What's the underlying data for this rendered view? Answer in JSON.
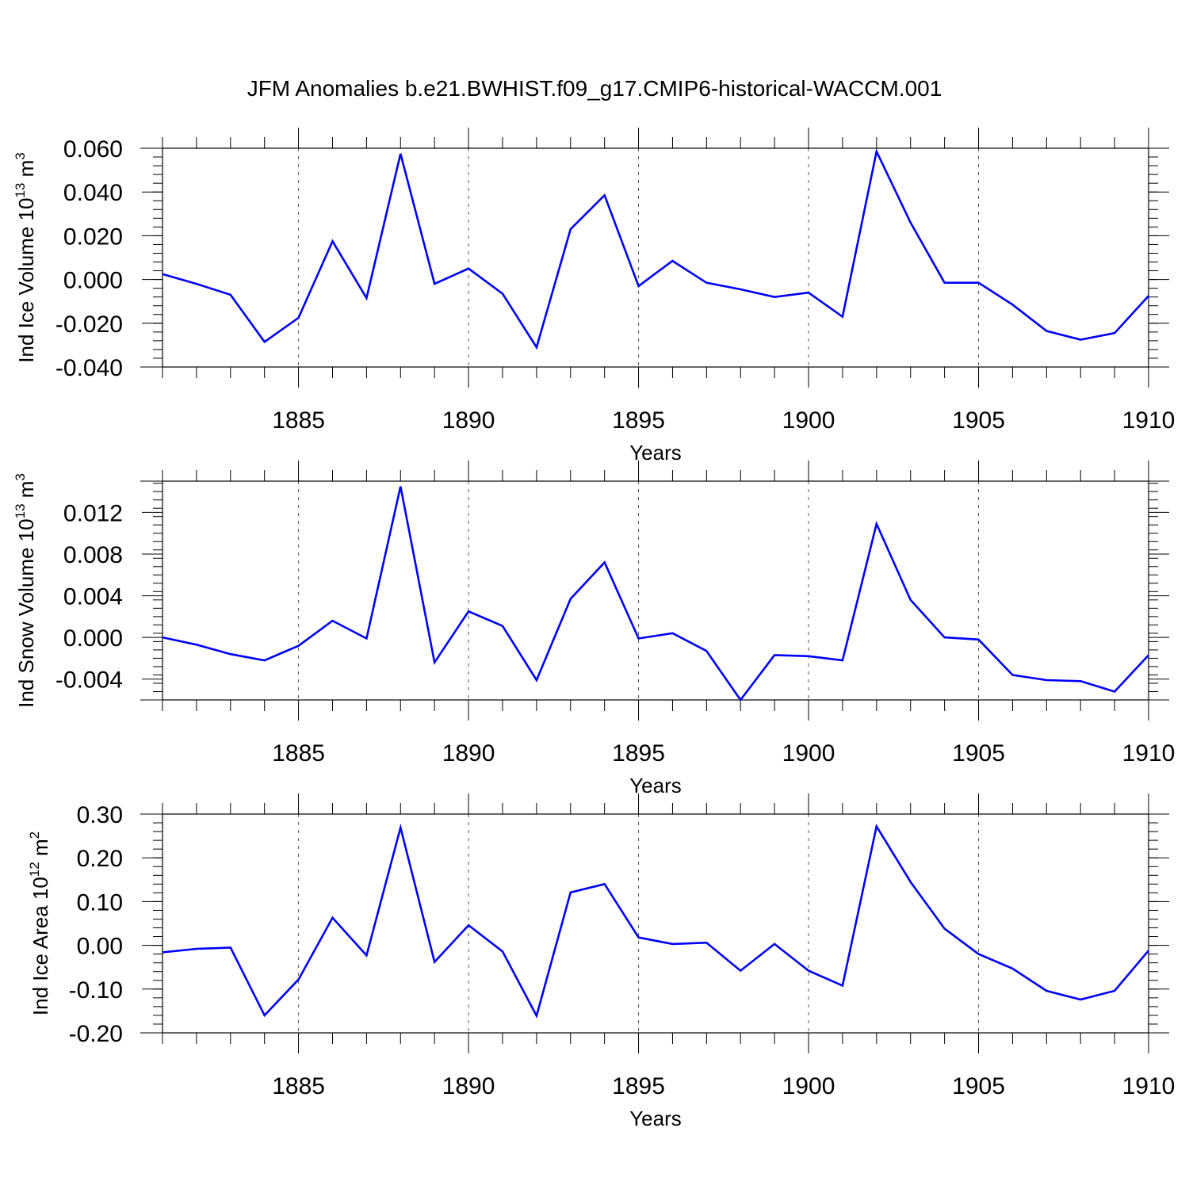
{
  "title": "JFM Anomalies b.e21.BWHIST.f09_g17.CMIP6-historical-WACCM.001",
  "line_color": "#0000ff",
  "chart_data": [
    {
      "type": "line",
      "xlabel": "Years",
      "ylabel": "Ind Ice Volume 10",
      "ylabel_exp": "13",
      "ylabel_unit": "m",
      "ylabel_unit_exp": "3",
      "xlim": [
        1881,
        1910
      ],
      "ylim": [
        -0.04,
        0.06
      ],
      "xticks": [
        "1885",
        "1890",
        "1895",
        "1900",
        "1905",
        "1910"
      ],
      "yticks": [
        "0.060",
        "0.040",
        "0.020",
        "0.000",
        "-0.020",
        "-0.040"
      ],
      "ytick_values": [
        0.06,
        0.04,
        0.02,
        0.0,
        -0.02,
        -0.04
      ],
      "ytick_minor_step": 0.004,
      "grid": "dashed vertical at 5-year ticks",
      "x": [
        1881,
        1882,
        1883,
        1884,
        1885,
        1886,
        1887,
        1888,
        1889,
        1890,
        1891,
        1892,
        1893,
        1894,
        1895,
        1896,
        1897,
        1898,
        1899,
        1900,
        1901,
        1902,
        1903,
        1904,
        1905,
        1906,
        1907,
        1908,
        1909,
        1910
      ],
      "values": [
        0.0025,
        -0.002,
        -0.007,
        -0.0285,
        -0.0175,
        0.0175,
        -0.0085,
        0.0575,
        -0.002,
        0.005,
        -0.0065,
        -0.031,
        0.023,
        0.0385,
        -0.003,
        0.0085,
        -0.0015,
        -0.0045,
        -0.008,
        -0.006,
        -0.017,
        0.0585,
        0.026,
        -0.0015,
        -0.0015,
        -0.0115,
        -0.0235,
        -0.0275,
        -0.0245,
        -0.0075
      ]
    },
    {
      "type": "line",
      "xlabel": "Years",
      "ylabel": "Ind Snow Volume 10",
      "ylabel_exp": "13",
      "ylabel_unit": "m",
      "ylabel_unit_exp": "3",
      "xlim": [
        1881,
        1910
      ],
      "ylim": [
        -0.006,
        0.015
      ],
      "xticks": [
        "1885",
        "1890",
        "1895",
        "1900",
        "1905",
        "1910"
      ],
      "yticks": [
        "0.012",
        "0.008",
        "0.004",
        "0.000",
        "-0.004"
      ],
      "ytick_values": [
        0.012,
        0.008,
        0.004,
        0.0,
        -0.004
      ],
      "ytick_minor_step": 0.0008,
      "grid": "dashed vertical at 5-year ticks",
      "x": [
        1881,
        1882,
        1883,
        1884,
        1885,
        1886,
        1887,
        1888,
        1889,
        1890,
        1891,
        1892,
        1893,
        1894,
        1895,
        1896,
        1897,
        1898,
        1899,
        1900,
        1901,
        1902,
        1903,
        1904,
        1905,
        1906,
        1907,
        1908,
        1909,
        1910
      ],
      "values": [
        0.0,
        -0.0007,
        -0.0016,
        -0.0022,
        -0.0008,
        0.0016,
        -0.0001,
        0.0145,
        -0.0024,
        0.0025,
        0.0011,
        -0.0041,
        0.0037,
        0.0072,
        -0.0001,
        0.0004,
        -0.0013,
        -0.006,
        -0.0017,
        -0.0018,
        -0.0022,
        0.0109,
        0.0036,
        0.0,
        -0.0002,
        -0.0036,
        -0.0041,
        -0.0042,
        -0.0052,
        -0.0017
      ]
    },
    {
      "type": "line",
      "xlabel": "Years",
      "ylabel": "Ind Ice Area 10",
      "ylabel_exp": "12",
      "ylabel_unit": "m",
      "ylabel_unit_exp": "2",
      "xlim": [
        1881,
        1910
      ],
      "ylim": [
        -0.2,
        0.3
      ],
      "xticks": [
        "1885",
        "1890",
        "1895",
        "1900",
        "1905",
        "1910"
      ],
      "yticks": [
        "0.30",
        "0.20",
        "0.10",
        "0.00",
        "-0.10",
        "-0.20"
      ],
      "ytick_values": [
        0.3,
        0.2,
        0.1,
        0.0,
        -0.1,
        -0.2
      ],
      "ytick_minor_step": 0.02,
      "grid": "dashed vertical at 5-year ticks",
      "x": [
        1881,
        1882,
        1883,
        1884,
        1885,
        1886,
        1887,
        1888,
        1889,
        1890,
        1891,
        1892,
        1893,
        1894,
        1895,
        1896,
        1897,
        1898,
        1899,
        1900,
        1901,
        1902,
        1903,
        1904,
        1905,
        1906,
        1907,
        1908,
        1909,
        1910
      ],
      "values": [
        -0.016,
        -0.008,
        -0.005,
        -0.16,
        -0.078,
        0.063,
        -0.023,
        0.269,
        -0.038,
        0.046,
        -0.014,
        -0.161,
        0.121,
        0.14,
        0.018,
        0.003,
        0.006,
        -0.058,
        0.003,
        -0.058,
        -0.092,
        0.272,
        0.145,
        0.038,
        -0.02,
        -0.053,
        -0.104,
        -0.124,
        -0.104,
        -0.012
      ]
    }
  ]
}
